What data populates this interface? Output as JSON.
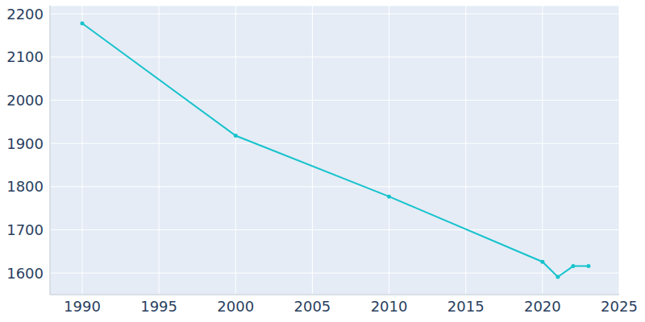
{
  "chart_data": {
    "type": "line",
    "x": [
      1990,
      2000,
      2010,
      2020,
      2021,
      2022,
      2023
    ],
    "values": [
      2178,
      1918,
      1777,
      1626,
      1591,
      1616,
      1616
    ],
    "color": "#17c3cc",
    "marker": "circle",
    "line_style": "solid",
    "xlim": [
      1987.9,
      2025
    ],
    "xticks": [
      1990,
      1995,
      2000,
      2005,
      2010,
      2015,
      2020,
      2025
    ],
    "ylim": [
      1550,
      2219
    ],
    "yticks": [
      1600,
      1700,
      1800,
      1900,
      2000,
      2100,
      2200
    ],
    "grid": true
  }
}
